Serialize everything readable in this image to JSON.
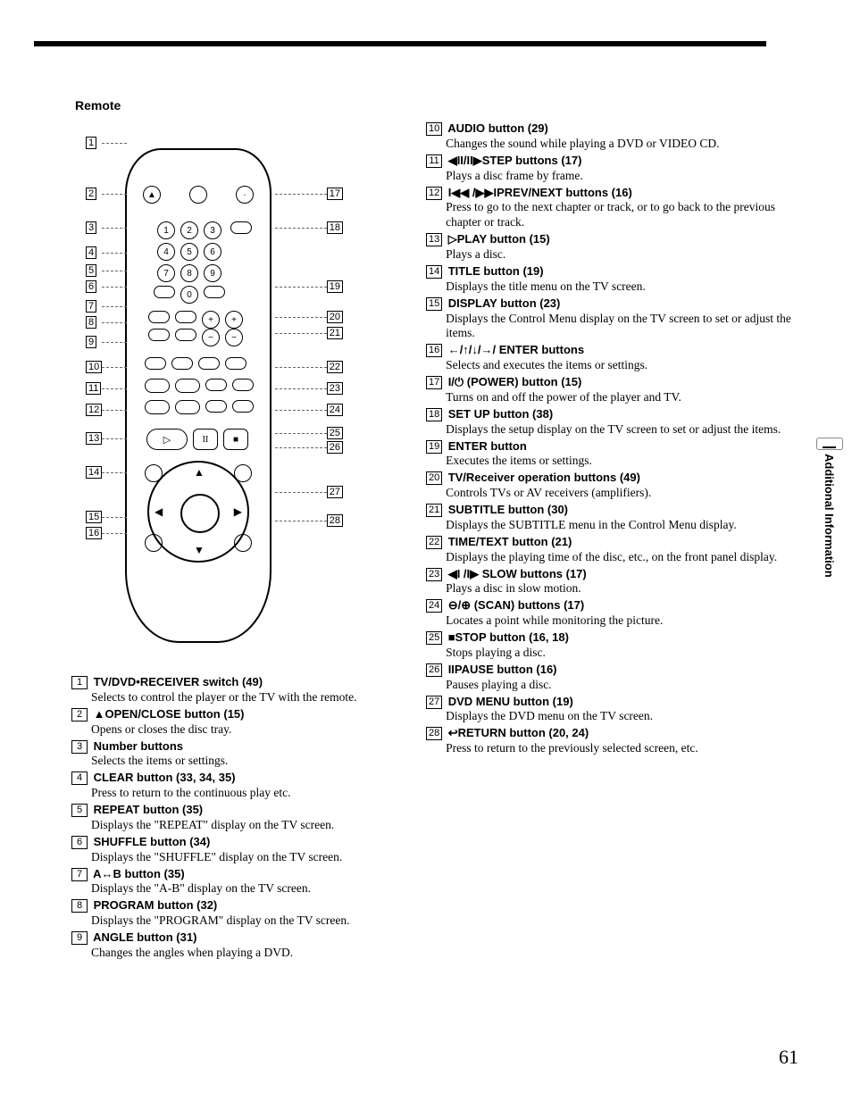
{
  "heading": "Remote",
  "side_tab": "Additional Information",
  "page_number": "61",
  "callouts_left": [
    "1",
    "2",
    "3",
    "4",
    "5",
    "6",
    "7",
    "8",
    "9",
    "10",
    "11",
    "12",
    "13",
    "14",
    "15",
    "16"
  ],
  "callouts_right": [
    "17",
    "18",
    "19",
    "20",
    "21",
    "22",
    "23",
    "24",
    "25",
    "26",
    "27",
    "28"
  ],
  "left_items": [
    {
      "n": "1",
      "t": "TV/DVD•RECEIVER switch (49)",
      "b": "Selects to control the player or the TV with the remote."
    },
    {
      "n": "2",
      "t": "▲OPEN/CLOSE button (15)",
      "b": "Opens or closes the disc tray."
    },
    {
      "n": "3",
      "t": "Number buttons",
      "b": "Selects the items or settings."
    },
    {
      "n": "4",
      "t": "CLEAR button (33, 34, 35)",
      "b": "Press to return to the continuous play etc."
    },
    {
      "n": "5",
      "t": "REPEAT button (35)",
      "b": "Displays the \"REPEAT\" display on the TV screen."
    },
    {
      "n": "6",
      "t": "SHUFFLE button (34)",
      "b": "Displays the \"SHUFFLE\" display on the TV screen."
    },
    {
      "n": "7",
      "t": "A↔B button (35)",
      "b": "Displays the \"A-B\" display on the TV screen."
    },
    {
      "n": "8",
      "t": "PROGRAM button (32)",
      "b": "Displays the \"PROGRAM\" display on the TV screen."
    },
    {
      "n": "9",
      "t": "ANGLE button (31)",
      "b": "Changes the angles when playing a DVD."
    }
  ],
  "right_items": [
    {
      "n": "10",
      "t": "AUDIO button (29)",
      "b": "Changes the sound while playing a DVD or VIDEO CD."
    },
    {
      "n": "11",
      "t": "◀II/II▶STEP buttons (17)",
      "b": "Plays a disc frame by frame."
    },
    {
      "n": "12",
      "t": "I◀◀ /▶▶IPREV/NEXT buttons (16)",
      "b": "Press to go to the next chapter or track, or to go back to the previous chapter or track."
    },
    {
      "n": "13",
      "t": "▷PLAY button (15)",
      "b": "Plays a disc."
    },
    {
      "n": "14",
      "t": "TITLE button (19)",
      "b": "Displays the title menu on the TV screen."
    },
    {
      "n": "15",
      "t": "DISPLAY button (23)",
      "b": "Displays the Control Menu display on the TV screen to set or adjust the items."
    },
    {
      "n": "16",
      "t": "←/↑/↓/→/ ENTER buttons",
      "b": "Selects and executes the items or settings."
    },
    {
      "n": "17",
      "t": "I/⏻ (POWER) button (15)",
      "b": "Turns on and off the power of the player and TV."
    },
    {
      "n": "18",
      "t": "SET UP button (38)",
      "b": "Displays the setup display on the TV screen to set or adjust the items."
    },
    {
      "n": "19",
      "t": "ENTER button",
      "b": "Executes the items or settings."
    },
    {
      "n": "20",
      "t": "TV/Receiver operation buttons (49)",
      "b": "Controls TVs or AV receivers (amplifiers)."
    },
    {
      "n": "21",
      "t": "SUBTITLE button (30)",
      "b": "Displays the SUBTITLE menu in the Control Menu display."
    },
    {
      "n": "22",
      "t": "TIME/TEXT button (21)",
      "b": "Displays the playing time of the disc, etc., on the front panel display."
    },
    {
      "n": "23",
      "t": "◀I /I▶ SLOW buttons (17)",
      "b": "Plays a disc in slow motion."
    },
    {
      "n": "24",
      "t": "⊖/⊕ (SCAN) buttons (17)",
      "b": "Locates a point while monitoring the picture."
    },
    {
      "n": "25",
      "t": "■STOP button (16, 18)",
      "b": "Stops playing a disc."
    },
    {
      "n": "26",
      "t": "IIPAUSE button (16)",
      "b": "Pauses playing a disc."
    },
    {
      "n": "27",
      "t": "DVD MENU button (19)",
      "b": "Displays the DVD menu on the TV screen."
    },
    {
      "n": "28",
      "t": "↩RETURN button (20, 24)",
      "b": "Press to return to the previously selected screen, etc."
    }
  ],
  "callout_left_tops": [
    7,
    64,
    102,
    130,
    150,
    168,
    190,
    208,
    230,
    258,
    282,
    306,
    338,
    376,
    426,
    444
  ],
  "callout_right_tops": [
    64,
    102,
    168,
    202,
    220,
    258,
    282,
    306,
    332,
    348,
    398,
    430
  ],
  "colors": {
    "text": "#000000",
    "bg": "#ffffff"
  }
}
